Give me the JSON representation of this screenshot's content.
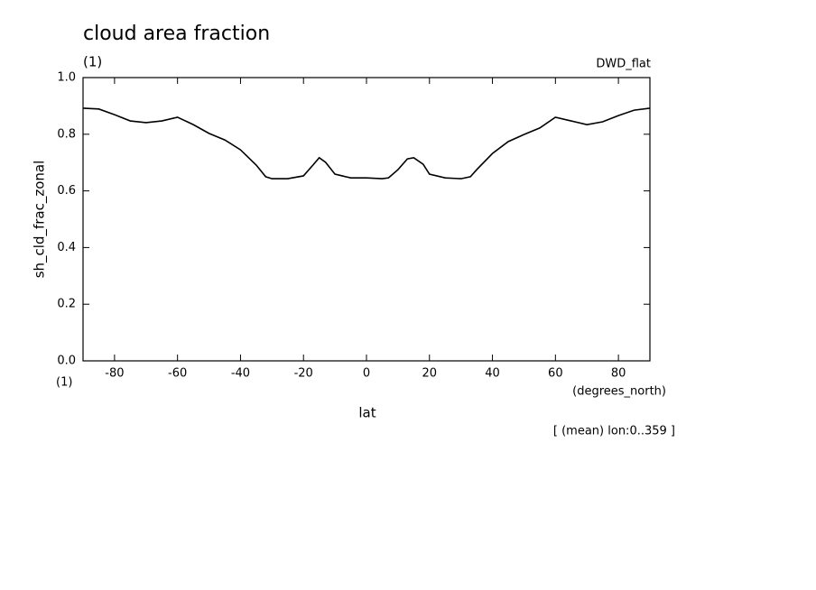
{
  "chart_data": {
    "type": "line",
    "title": "cloud area fraction",
    "units_label": "(1)",
    "dataset": "DWD_flat",
    "y_label": "sh_cld_frac_zonal",
    "x_units_label": "(1)",
    "x_units": "(degrees_north)",
    "x_label": "lat",
    "note": "[ (mean) lon:0..359 ]",
    "x": [
      -90,
      -85,
      -80,
      -75,
      -70,
      -65,
      -60,
      -55,
      -50,
      -45,
      -40,
      -35,
      -32,
      -30,
      -25,
      -20,
      -17,
      -15,
      -13,
      -10,
      -5,
      0,
      5,
      7,
      10,
      13,
      15,
      18,
      20,
      25,
      30,
      33,
      35,
      40,
      45,
      50,
      55,
      60,
      65,
      70,
      75,
      80,
      85,
      90
    ],
    "series": [
      {
        "color": "#000000",
        "values": [
          0.892,
          0.889,
          0.869,
          0.847,
          0.841,
          0.847,
          0.86,
          0.834,
          0.803,
          0.78,
          0.745,
          0.691,
          0.65,
          0.643,
          0.643,
          0.653,
          0.691,
          0.717,
          0.701,
          0.659,
          0.646,
          0.646,
          0.643,
          0.646,
          0.675,
          0.713,
          0.717,
          0.694,
          0.659,
          0.646,
          0.643,
          0.65,
          0.675,
          0.732,
          0.774,
          0.799,
          0.822,
          0.86,
          0.847,
          0.834,
          0.844,
          0.866,
          0.885,
          0.892
        ]
      }
    ],
    "xlim": [
      -90,
      90
    ],
    "xticks": [
      -80,
      -60,
      -40,
      -20,
      0,
      20,
      40,
      60,
      80
    ],
    "ylim": [
      0,
      1
    ],
    "yticks": [
      {
        "value": 0,
        "label": "0.0"
      },
      0.2,
      0.4,
      0.6,
      0.8,
      {
        "value": 1,
        "label": "1.0"
      }
    ],
    "grid": false
  }
}
